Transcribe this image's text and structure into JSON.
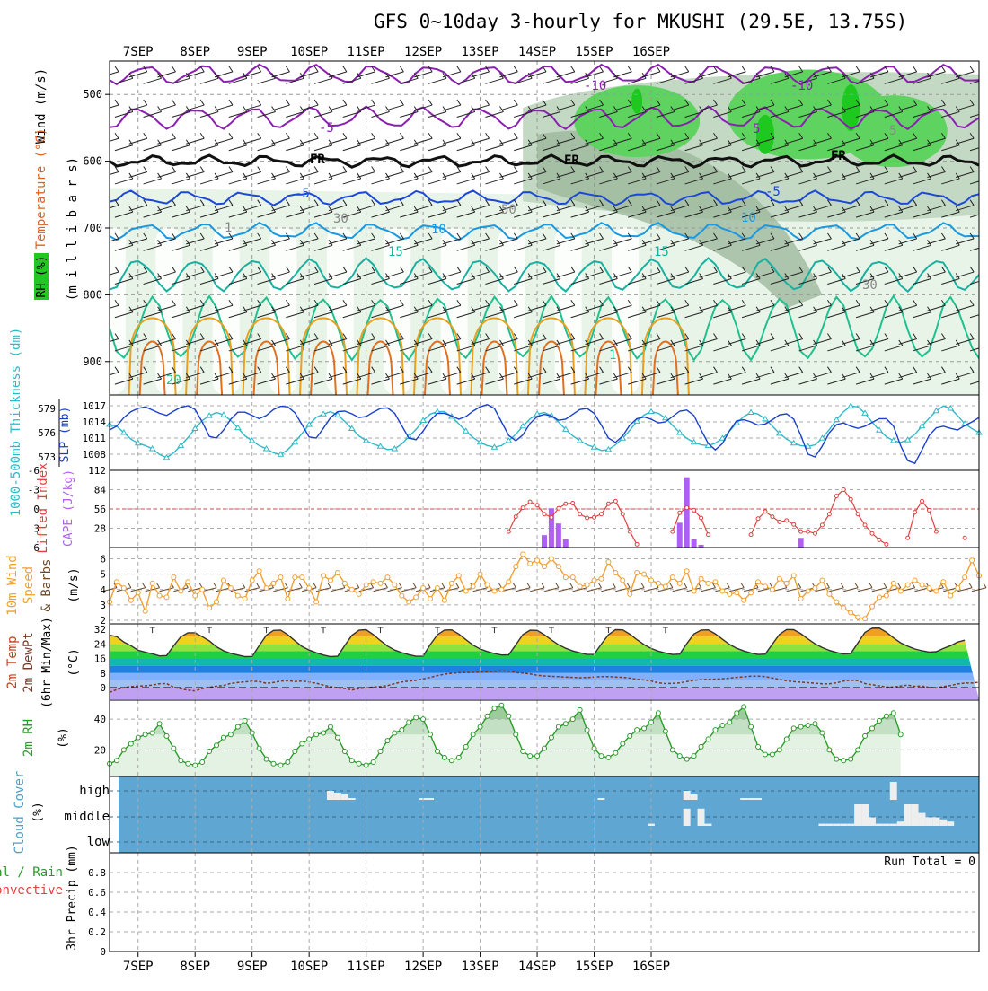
{
  "title": "GFS 0~10day 3-hourly for MKUSHI (29.5E, 13.75S)",
  "dates": [
    "7SEP",
    "8SEP",
    "9SEP",
    "10SEP",
    "11SEP",
    "12SEP",
    "13SEP",
    "14SEP",
    "15SEP",
    "16SEP"
  ],
  "colors": {
    "rh_light": "#e6f3e6",
    "rh_mid": "#c4d9c4",
    "rh_dark": "#9eb89e",
    "rh_green": "#5fd35f",
    "rh_bright": "#1fc81f",
    "wind_orange": "#f0a030",
    "temp_dark": "#333333",
    "cloud": "#5fa7d2",
    "slp": "#1a3fcc",
    "thick": "#30b8c8",
    "cape": "#b060f0",
    "li": "#e04040",
    "rh2m": "#2a9a2a"
  },
  "upper": {
    "ylabel_wind": "Wind (m/s)",
    "ylabel_temp": "Temperature (°C)",
    "ylabel_mb": "(m i l l i b a r s)",
    "ylabel_rh": "RH (%)",
    "yticks": [
      "500",
      "600",
      "700",
      "800",
      "900"
    ],
    "contour_labels": [
      "-10",
      "-5",
      "FR",
      "-5",
      "10",
      "15",
      "10",
      "15",
      "20",
      "1",
      "30",
      "50",
      "5",
      "FR",
      "FR",
      "-5",
      "5",
      "30",
      "1",
      "-10"
    ]
  },
  "panels": {
    "slp": {
      "ylabel_left": "1000-500mb Thickness (dm)",
      "ylabel_right": "SLP (mb)",
      "left_ticks": [
        "579",
        "576",
        "573"
      ],
      "right_ticks": [
        "1017",
        "1014",
        "1011",
        "1008"
      ]
    },
    "cape": {
      "ylabel_left": "Lifted Index",
      "ylabel_right": "CAPE (J/kg)",
      "left_ticks": [
        "-6",
        "-3",
        "0",
        "3",
        "6"
      ],
      "right_ticks": [
        "112",
        "84",
        "56",
        "28"
      ]
    },
    "wind10": {
      "ylabel_1": "10m Wind",
      "ylabel_2": "Speed",
      "ylabel_3": "& Barbs",
      "ylabel_unit": "(m/s)",
      "ticks": [
        "6",
        "5",
        "4",
        "3",
        "2"
      ]
    },
    "temp2m": {
      "ylabel_1": "2m Temp",
      "ylabel_2": "2m DewPt",
      "ylabel_3": "(6hr Min/Max)",
      "ylabel_unit": "(°C)",
      "ticks": [
        "32",
        "24",
        "16",
        "8",
        "0"
      ]
    },
    "rh2m": {
      "ylabel": "2m RH",
      "ylabel_unit": "(%)",
      "ticks": [
        "40",
        "20"
      ]
    },
    "cloud": {
      "ylabel": "Cloud Cover",
      "ylabel_unit": "(%)",
      "levels": [
        "high",
        "middle",
        "low"
      ]
    },
    "precip": {
      "ylabel_1": "Total / Rain",
      "ylabel_2": "Convective",
      "ylabel_unit": "3hr Precip (mm)",
      "ticks": [
        "0.8",
        "0.6",
        "0.4",
        "0.2",
        "0"
      ],
      "run_total": "Run Total = 0"
    }
  },
  "chart_data": {
    "type": "line",
    "x_start": "2023-09-06 12UTC",
    "x_step_hours": 3,
    "slp_mb": [
      1012.5,
      1013.2,
      1014.8,
      1015.9,
      1016.5,
      1016.8,
      1016.2,
      1015.6,
      1015.2,
      1016.0,
      1016.7,
      1017.0,
      1016.3,
      1014.0,
      1011.3,
      1011.0,
      1012.5,
      1014.5,
      1015.8,
      1015.8,
      1015.2,
      1014.6,
      1015.2,
      1016.3,
      1016.9,
      1016.8,
      1015.7,
      1013.5,
      1011.2,
      1011.0,
      1012.8,
      1014.8,
      1015.9,
      1016.0,
      1015.5,
      1014.8,
      1015.0,
      1015.8,
      1016.5,
      1016.6,
      1015.6,
      1013.3,
      1011.0,
      1010.7,
      1012.3,
      1014.3,
      1015.6,
      1015.6,
      1015.1,
      1014.5,
      1015.0,
      1016.0,
      1016.8,
      1017.2,
      1016.5,
      1014.0,
      1011.5,
      1010.5,
      1011.6,
      1013.7,
      1015.0,
      1015.4,
      1015.1,
      1014.3,
      1014.5,
      1015.4,
      1016.3,
      1016.5,
      1015.6,
      1013.4,
      1011.0,
      1010.2,
      1011.4,
      1013.4,
      1014.6,
      1014.9,
      1014.5,
      1013.8,
      1014.0,
      1015.0,
      1016.0,
      1016.2,
      1015.2,
      1012.5,
      1010.0,
      1008.8,
      1010.0,
      1012.4,
      1014.2,
      1014.4,
      1014.0,
      1013.4,
      1013.6,
      1014.4,
      1015.3,
      1015.5,
      1014.5,
      1011.5,
      1008.0,
      1007.5,
      1009.5,
      1012.0,
      1013.5,
      1013.8,
      1013.2,
      1012.8,
      1013.2,
      1013.9,
      1014.6,
      1014.6,
      1013.2,
      1009.6,
      1006.8,
      1006.3,
      1008.8,
      1011.5,
      1012.9,
      1013.2,
      1012.8,
      1012.5,
      1013.3,
      1014.0,
      1014.8
    ],
    "thickness_dm": [
      577.0,
      576.8,
      576.0,
      575.2,
      574.7,
      574.4,
      574.0,
      573.3,
      572.9,
      573.5,
      574.4,
      575.4,
      576.5,
      577.5,
      578.1,
      578.5,
      578.2,
      577.5,
      576.6,
      575.6,
      575.0,
      574.4,
      574.0,
      573.5,
      573.3,
      573.9,
      574.8,
      575.9,
      577.0,
      577.9,
      578.3,
      578.6,
      578.2,
      577.4,
      576.5,
      575.6,
      575.0,
      574.6,
      574.3,
      573.9,
      574.0,
      574.6,
      575.5,
      576.4,
      577.5,
      578.3,
      578.6,
      578.6,
      578.0,
      577.1,
      576.2,
      575.4,
      574.8,
      574.4,
      574.2,
      574.4,
      575.0,
      575.8,
      576.8,
      577.7,
      578.3,
      578.5,
      578.1,
      577.3,
      576.4,
      575.6,
      575.0,
      574.5,
      574.2,
      573.8,
      573.9,
      574.5,
      575.3,
      576.3,
      577.4,
      578.2,
      578.6,
      578.4,
      577.8,
      576.9,
      576.0,
      575.3,
      574.8,
      574.5,
      574.4,
      574.7,
      575.3,
      576.2,
      577.2,
      578.0,
      578.5,
      578.3,
      577.7,
      576.8,
      575.9,
      575.2,
      574.7,
      574.4,
      574.3,
      574.5,
      575.3,
      576.4,
      577.6,
      578.6,
      579.3,
      579.2,
      578.4,
      577.3,
      576.3,
      575.5,
      575.0,
      574.8,
      575.1,
      575.8,
      576.8,
      577.8,
      578.7,
      579.3,
      579.0,
      578.1,
      577.1,
      576.5,
      576.0
    ],
    "lifted_index": [
      6,
      6,
      6,
      6,
      6,
      6,
      6,
      6,
      6,
      6,
      6,
      6,
      6,
      6,
      6,
      6,
      6,
      6,
      6,
      6,
      6,
      6,
      6,
      6,
      6,
      6,
      6,
      6,
      6,
      6,
      6,
      6,
      6,
      6,
      6,
      6,
      6,
      6,
      6,
      6,
      6,
      6,
      6,
      6,
      6,
      6,
      6,
      6,
      6,
      6,
      6,
      6,
      6,
      6,
      6,
      6,
      3.5,
      1.2,
      -0.2,
      -1.1,
      -0.6,
      0.8,
      1.3,
      -0.1,
      -0.8,
      -0.9,
      0.8,
      1.4,
      1.3,
      0.8,
      -0.8,
      -1.2,
      0.8,
      3.5,
      5.5,
      6,
      6,
      6,
      6,
      3.5,
      0.6,
      -0.2,
      0.2,
      1.4,
      4.0,
      6,
      6,
      6,
      6,
      6,
      4.0,
      1.5,
      0.4,
      1.2,
      2.0,
      1.8,
      2.4,
      3.5,
      3.5,
      3.8,
      2.5,
      0.8,
      -2.0,
      -3.0,
      -1.5,
      0.8,
      2.5,
      3.8,
      4.8,
      5.5,
      6,
      6,
      4.5,
      0.5,
      -1.2,
      0.2,
      3.5,
      6,
      6,
      6,
      4.5
    ],
    "cape_jkg": [
      0,
      0,
      0,
      0,
      0,
      0,
      0,
      0,
      0,
      0,
      0,
      0,
      0,
      0,
      0,
      0,
      0,
      0,
      0,
      0,
      0,
      0,
      0,
      0,
      0,
      0,
      0,
      0,
      0,
      0,
      0,
      0,
      0,
      0,
      0,
      0,
      0,
      0,
      0,
      0,
      0,
      0,
      0,
      0,
      0,
      0,
      0,
      0,
      0,
      0,
      0,
      0,
      0,
      0,
      0,
      0,
      0,
      0,
      0,
      0,
      0,
      18,
      57,
      35,
      12,
      0,
      0,
      0,
      0,
      0,
      0,
      0,
      0,
      0,
      0,
      0,
      0,
      0,
      0,
      0,
      36,
      102,
      12,
      4,
      0,
      0,
      0,
      0,
      0,
      0,
      0,
      0,
      0,
      0,
      0,
      0,
      0,
      14,
      0,
      0,
      0,
      0,
      0,
      0,
      0,
      0,
      0,
      0,
      0,
      0,
      0,
      0,
      0,
      0,
      0,
      0,
      0,
      0,
      0,
      0,
      0,
      0,
      0,
      0
    ],
    "wind10_ms": [
      3.2,
      4.5,
      4.1,
      3.3,
      3.8,
      2.6,
      4.4,
      3.6,
      3.5,
      4.8,
      3.9,
      4.5,
      3.6,
      4.0,
      2.8,
      3.2,
      4.6,
      4.1,
      3.6,
      3.4,
      4.6,
      5.2,
      4.1,
      4.4,
      4.8,
      3.4,
      4.8,
      4.8,
      4.1,
      3.2,
      4.9,
      4.6,
      5.1,
      4.4,
      4.0,
      3.7,
      4.3,
      4.5,
      4.4,
      4.8,
      4.3,
      3.6,
      3.2,
      3.5,
      4.1,
      3.4,
      4.1,
      3.3,
      4.4,
      4.9,
      3.9,
      4.2,
      5.0,
      4.3,
      3.9,
      4.0,
      4.5,
      5.5,
      6.3,
      5.7,
      5.9,
      5.5,
      6.0,
      5.5,
      4.8,
      4.8,
      4.2,
      4.3,
      4.6,
      4.7,
      5.8,
      5.1,
      4.6,
      3.7,
      5.1,
      5.0,
      4.6,
      4.4,
      4.2,
      4.8,
      4.4,
      5.2,
      3.9,
      4.7,
      4.4,
      4.5,
      3.9,
      3.7,
      3.8,
      3.3,
      3.8,
      4.5,
      4.2,
      4.0,
      4.7,
      4.4,
      4.9,
      3.4,
      3.9,
      4.1,
      4.6,
      3.7,
      3.2,
      2.8,
      2.5,
      2.2,
      2.1,
      2.9,
      3.5,
      3.6,
      4.4,
      3.9,
      4.3,
      4.6,
      4.3,
      4.1,
      3.9,
      4.5,
      3.6,
      4.1,
      4.8,
      5.9,
      4.9
    ],
    "temp2m_c": [
      28.8,
      28.0,
      25.0,
      23.0,
      20.5,
      19.4,
      18.6,
      17.4,
      17.6,
      23.0,
      27.9,
      30.1,
      30.1,
      28.0,
      25.6,
      22.4,
      20.2,
      18.8,
      17.9,
      17.0,
      17.1,
      23.0,
      28.8,
      31.4,
      31.6,
      29.0,
      25.7,
      22.6,
      20.6,
      19.1,
      17.9,
      17.0,
      17.2,
      23.1,
      28.7,
      31.5,
      31.8,
      29.1,
      25.8,
      22.8,
      20.6,
      19.2,
      18.1,
      17.2,
      17.3,
      23.6,
      29.0,
      31.6,
      31.7,
      29.4,
      26.3,
      23.3,
      21.2,
      19.8,
      18.7,
      17.9,
      18.0,
      23.5,
      29.1,
      31.5,
      31.4,
      29.0,
      26.2,
      23.5,
      21.6,
      20.1,
      19.1,
      18.2,
      18.3,
      23.9,
      29.0,
      31.8,
      31.7,
      29.3,
      26.3,
      23.6,
      21.5,
      20.0,
      19.0,
      18.2,
      18.4,
      24.2,
      29.4,
      31.6,
      31.7,
      29.5,
      26.5,
      23.7,
      21.6,
      20.1,
      19.0,
      18.2,
      18.4,
      23.8,
      29.2,
      31.9,
      31.8,
      29.6,
      26.7,
      24.0,
      22.0,
      20.4,
      19.3,
      18.5,
      18.7,
      24.5,
      30.3,
      32.6,
      32.7,
      30.4,
      27.3,
      24.6,
      22.7,
      21.2,
      20.2,
      19.5,
      19.7,
      21.5,
      23.0,
      25.0,
      26.0
    ],
    "dewpt2m_c": [
      -2.6,
      -1.1,
      -0.1,
      0.6,
      0.8,
      1.0,
      1.4,
      2.1,
      2.2,
      0.2,
      -0.7,
      -1.4,
      -1.8,
      -0.6,
      0.2,
      0.8,
      1.2,
      2.3,
      2.8,
      3.2,
      3.5,
      3.3,
      2.4,
      2.8,
      3.6,
      3.8,
      3.4,
      3.6,
      3.1,
      2.4,
      1.4,
      0.5,
      -0.1,
      -0.5,
      -1.3,
      -0.6,
      -0.1,
      0.3,
      0.6,
      1.1,
      2.2,
      3.1,
      3.6,
      4.0,
      4.8,
      5.6,
      6.6,
      7.4,
      7.9,
      8.2,
      8.3,
      8.4,
      8.5,
      8.6,
      8.9,
      9.2,
      9.0,
      8.3,
      8.0,
      7.5,
      6.8,
      6.4,
      6.2,
      6.0,
      5.8,
      5.6,
      5.4,
      5.5,
      5.8,
      6.0,
      6.0,
      5.8,
      5.6,
      5.2,
      4.6,
      4.2,
      3.6,
      2.6,
      2.2,
      2.3,
      2.6,
      3.3,
      4.0,
      4.4,
      4.6,
      4.7,
      4.9,
      5.2,
      5.6,
      5.9,
      6.3,
      6.3,
      6.0,
      5.3,
      4.5,
      3.8,
      3.3,
      3.0,
      2.7,
      2.4,
      2.1,
      2.1,
      2.6,
      3.6,
      4.1,
      3.8,
      2.2,
      1.6,
      1.0,
      0.3,
      0.3,
      0.9,
      1.4,
      0.7,
      0.9,
      0.1,
      -0.2,
      0.6,
      1.2,
      2.0,
      2.5,
      2.5,
      3.0
    ],
    "rh2m_pct": [
      11,
      13,
      20,
      24,
      28,
      30,
      31,
      37,
      29,
      21,
      13,
      11,
      10,
      12,
      19,
      23,
      28,
      30,
      35,
      39,
      31,
      21,
      14,
      11,
      10,
      12,
      19,
      24,
      27,
      30,
      31,
      35,
      28,
      19,
      13,
      11,
      10,
      12,
      19,
      26,
      31,
      33,
      38,
      41,
      40,
      30,
      19,
      15,
      13,
      15,
      22,
      30,
      35,
      42,
      47,
      49,
      42,
      30,
      19,
      16,
      16,
      21,
      28,
      35,
      37,
      40,
      46,
      33,
      21,
      16,
      15,
      18,
      24,
      29,
      33,
      34,
      38,
      44,
      32,
      20,
      16,
      14,
      16,
      22,
      27,
      33,
      36,
      38,
      44,
      48,
      35,
      22,
      17,
      17,
      20,
      27,
      34,
      35,
      36,
      37,
      31,
      20,
      14,
      13,
      14,
      20,
      29,
      34,
      39,
      42,
      44,
      30
    ],
    "cloud_high_pct": [
      0,
      0,
      0,
      0,
      0,
      0,
      0,
      0,
      0,
      0,
      0,
      0,
      0,
      0,
      0,
      0,
      0,
      0,
      0,
      0,
      0,
      0,
      0,
      0,
      0,
      0,
      0,
      0,
      0,
      0,
      0,
      5,
      4,
      3,
      1,
      0,
      0,
      0,
      0,
      0,
      0,
      0,
      0,
      0,
      1,
      1,
      0,
      0,
      0,
      0,
      0,
      0,
      0,
      0,
      0,
      0,
      0,
      0,
      0,
      0,
      0,
      0,
      0,
      0,
      0,
      0,
      0,
      0,
      0,
      1,
      0,
      0,
      0,
      0,
      0,
      0,
      0,
      0,
      0,
      0,
      0,
      5,
      3,
      0,
      0,
      0,
      0,
      0,
      0,
      1,
      1,
      1,
      0,
      0,
      0,
      0,
      0,
      0,
      0,
      0,
      0,
      0,
      0,
      0,
      0,
      0,
      0,
      0,
      0,
      0,
      10,
      0,
      0,
      0,
      0,
      0,
      0,
      0,
      0,
      0,
      0,
      0,
      0,
      0,
      0
    ],
    "cloud_mid_pct": [
      0,
      0,
      0,
      0,
      0,
      0,
      0,
      0,
      0,
      0,
      0,
      0,
      0,
      0,
      0,
      0,
      0,
      0,
      0,
      0,
      0,
      0,
      0,
      0,
      0,
      0,
      0,
      0,
      0,
      0,
      0,
      0,
      0,
      0,
      0,
      0,
      0,
      0,
      0,
      0,
      0,
      0,
      0,
      0,
      0,
      0,
      0,
      0,
      0,
      0,
      0,
      0,
      0,
      0,
      0,
      0,
      0,
      0,
      0,
      0,
      0,
      0,
      0,
      0,
      0,
      0,
      0,
      0,
      0,
      0,
      0,
      0,
      0,
      0,
      0,
      0,
      1,
      0,
      0,
      0,
      0,
      8,
      0,
      8,
      1,
      0,
      0,
      0,
      0,
      0,
      0,
      0,
      0,
      0,
      0,
      0,
      0,
      0,
      0,
      0,
      1,
      1,
      1,
      1,
      1,
      10,
      10,
      4,
      1,
      1,
      1,
      2,
      10,
      10,
      6,
      4,
      4,
      3,
      2,
      0,
      0,
      0,
      0,
      0,
      0
    ],
    "precip_mm": 0
  }
}
